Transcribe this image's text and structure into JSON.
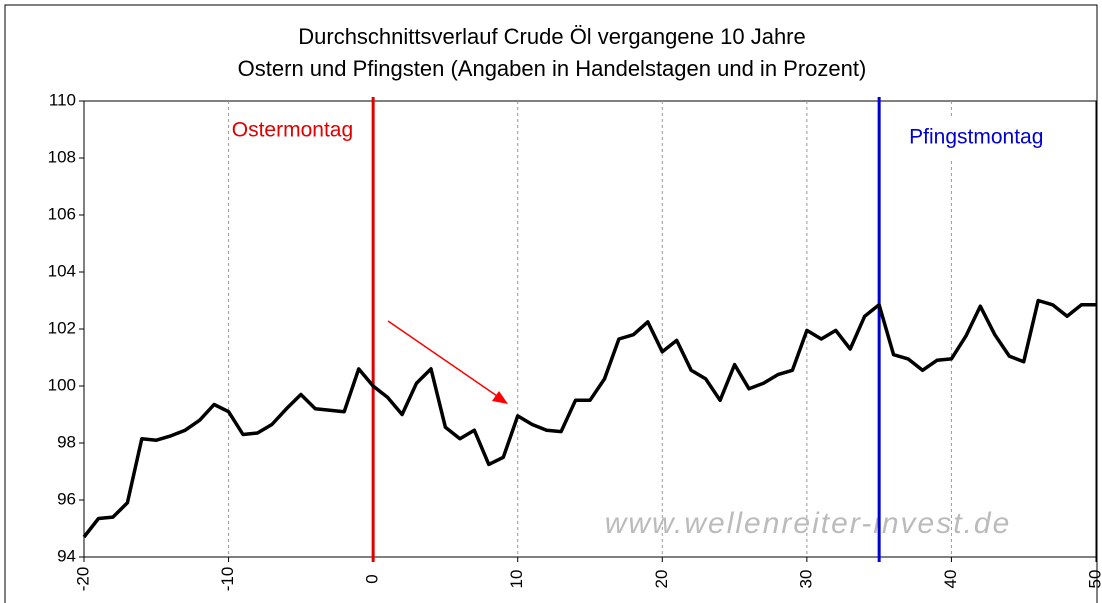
{
  "chart_data": {
    "type": "line",
    "title": "Durchschnittsverlauf Crude Öl vergangene 10 Jahre",
    "subtitle": "Ostern und Pfingsten (Angaben in Handelstagen und in Prozent)",
    "x": [
      -20,
      -19,
      -18,
      -17,
      -16,
      -15,
      -14,
      -13,
      -12,
      -11,
      -10,
      -9,
      -8,
      -7,
      -6,
      -5,
      -4,
      -3,
      -2,
      -1,
      0,
      1,
      2,
      3,
      4,
      5,
      6,
      7,
      8,
      9,
      10,
      11,
      12,
      13,
      14,
      15,
      16,
      17,
      18,
      19,
      20,
      21,
      22,
      23,
      24,
      25,
      26,
      27,
      28,
      29,
      30,
      31,
      32,
      33,
      34,
      35,
      36,
      37,
      38,
      39,
      40,
      41,
      42,
      43,
      44,
      45,
      46,
      47,
      48,
      49,
      50
    ],
    "values": [
      94.7,
      95.35,
      95.4,
      95.9,
      98.15,
      98.1,
      98.25,
      98.45,
      98.8,
      99.35,
      99.1,
      98.3,
      98.35,
      98.65,
      99.2,
      99.7,
      99.2,
      99.15,
      99.1,
      100.6,
      100.0,
      99.6,
      99.0,
      100.1,
      100.6,
      98.55,
      98.15,
      98.45,
      97.25,
      97.5,
      98.95,
      98.65,
      98.45,
      98.4,
      99.5,
      99.5,
      100.25,
      101.65,
      101.8,
      102.25,
      101.2,
      101.6,
      100.55,
      100.25,
      99.5,
      100.75,
      99.9,
      100.1,
      100.4,
      100.55,
      101.95,
      101.65,
      101.95,
      101.3,
      102.45,
      102.85,
      101.1,
      100.95,
      100.55,
      100.9,
      100.95,
      101.75,
      102.8,
      101.8,
      101.05,
      100.85,
      103.0,
      102.85,
      102.45,
      102.85,
      102.85
    ],
    "color": "#000000",
    "xlim": [
      -20,
      50
    ],
    "xticks": [
      -20,
      -10,
      0,
      10,
      20,
      30,
      40,
      50
    ],
    "ylim": [
      94,
      110
    ],
    "yticks": [
      94,
      96,
      98,
      100,
      102,
      104,
      106,
      108,
      110
    ],
    "grid": true,
    "vlines": [
      {
        "x": 0,
        "label": "Ostermontag",
        "color": "#e00000"
      },
      {
        "x": 35,
        "label": "Pfingstmontag",
        "color": "#0000d0"
      }
    ],
    "watermark": "www.wellenreiter-invest.de"
  }
}
